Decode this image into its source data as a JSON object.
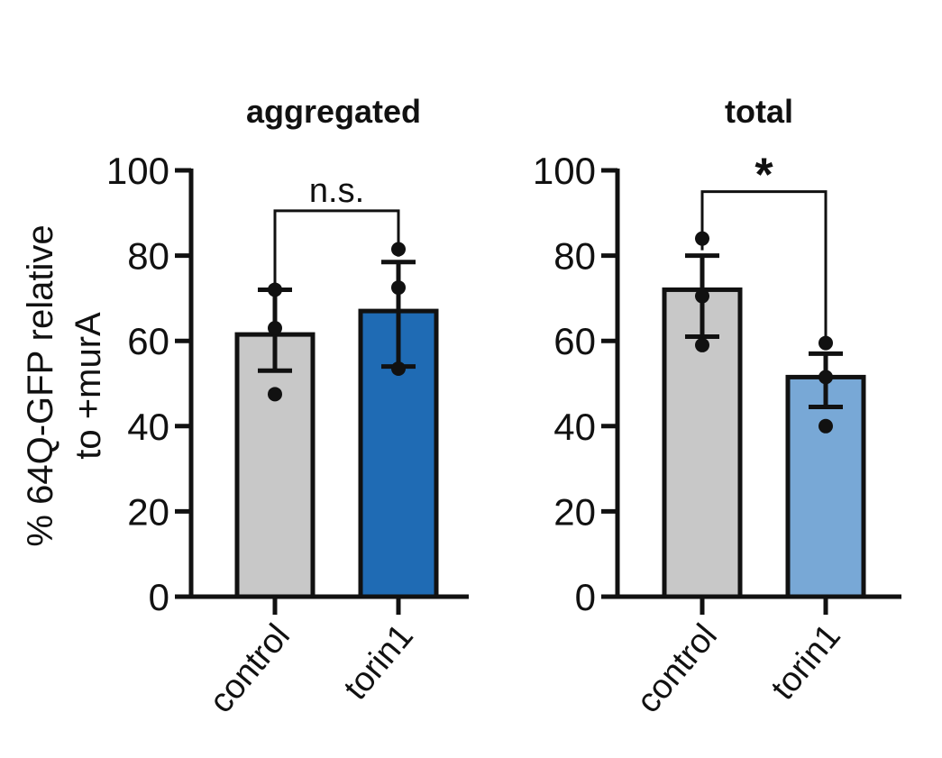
{
  "y_axis_label_lines": [
    "% 64Q-GFP relative",
    "to +murA"
  ],
  "chart_data": [
    {
      "type": "bar",
      "title": "aggregated",
      "categories": [
        "control",
        "torin1"
      ],
      "ylim": [
        0,
        100
      ],
      "yticks": [
        0,
        20,
        40,
        60,
        80,
        100
      ],
      "ytick_labels": [
        "0",
        "20",
        "40",
        "60",
        "80",
        "100"
      ],
      "grid": false,
      "series": [
        {
          "values": [
            61.5,
            67
          ],
          "error_low": [
            53,
            54
          ],
          "error_high": [
            72,
            78.5
          ],
          "colors": [
            "#c8c8c8",
            "#1f6bb4"
          ],
          "points": [
            [
              72,
              63,
              47.5
            ],
            [
              81.5,
              72.5,
              53.5
            ]
          ]
        }
      ],
      "significance": {
        "label": "n.s.",
        "between": [
          "control",
          "torin1"
        ],
        "y": 90.5
      }
    },
    {
      "type": "bar",
      "title": "total",
      "categories": [
        "control",
        "torin1"
      ],
      "ylim": [
        0,
        100
      ],
      "yticks": [
        0,
        20,
        40,
        60,
        80,
        100
      ],
      "ytick_labels": [
        "0",
        "20",
        "40",
        "60",
        "80",
        "100"
      ],
      "grid": false,
      "series": [
        {
          "values": [
            72,
            51.5
          ],
          "error_low": [
            61,
            44.5
          ],
          "error_high": [
            80,
            57
          ],
          "colors": [
            "#c8c8c8",
            "#78a8d6"
          ],
          "points": [
            [
              84,
              70.5,
              59
            ],
            [
              59.5,
              51.5,
              40
            ]
          ]
        }
      ],
      "significance": {
        "label": "*",
        "between": [
          "control",
          "torin1"
        ],
        "y": 95
      }
    }
  ]
}
